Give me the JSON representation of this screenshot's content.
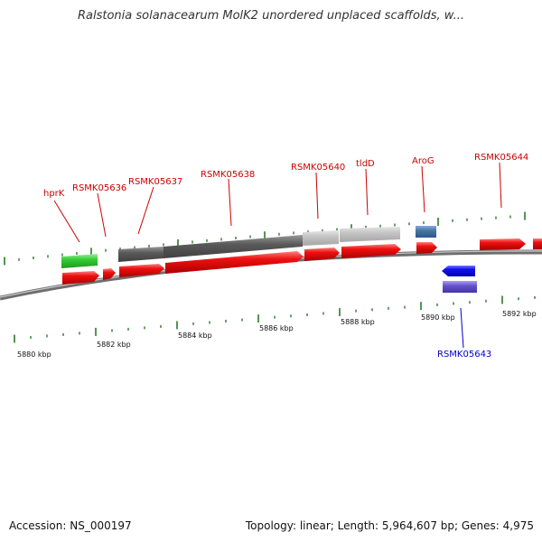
{
  "title": "Ralstonia solanacearum MolK2 unordered unplaced scaffolds, w...",
  "footer": {
    "accession": "Accession: NS_000197",
    "topology": "Topology: linear; Length: 5,964,607 bp; Genes: 4,975"
  },
  "colors": {
    "gene_label": "#cc0000",
    "gene_label_minus": "#0000cc",
    "tick": "#2a7a2a",
    "arrow_red": "#ee1111",
    "arrow_blue": "#1111ee",
    "arrow_purple": "#6655cc",
    "feature_green": "#33cc33",
    "feature_steelblue": "#4477aa",
    "feature_darkgray": "#5a5a5a",
    "feature_lightgray": "#bdbdbd",
    "backbone": "#7a7a7a"
  },
  "scale_labels": [
    "5880 kbp",
    "5882 kbp",
    "5884 kbp",
    "5886 kbp",
    "5888 kbp",
    "5890 kbp",
    "5892 kbp"
  ],
  "gene_labels": [
    {
      "text": "hprK",
      "strand": "plus"
    },
    {
      "text": "RSMK05636",
      "strand": "plus"
    },
    {
      "text": "RSMK05637",
      "strand": "plus"
    },
    {
      "text": "RSMK05638",
      "strand": "plus"
    },
    {
      "text": "RSMK05640",
      "strand": "plus"
    },
    {
      "text": "tldD",
      "strand": "plus"
    },
    {
      "text": "AroG",
      "strand": "plus"
    },
    {
      "text": "RSMK05644",
      "strand": "plus"
    },
    {
      "text": "RSMK05643",
      "strand": "minus"
    }
  ]
}
